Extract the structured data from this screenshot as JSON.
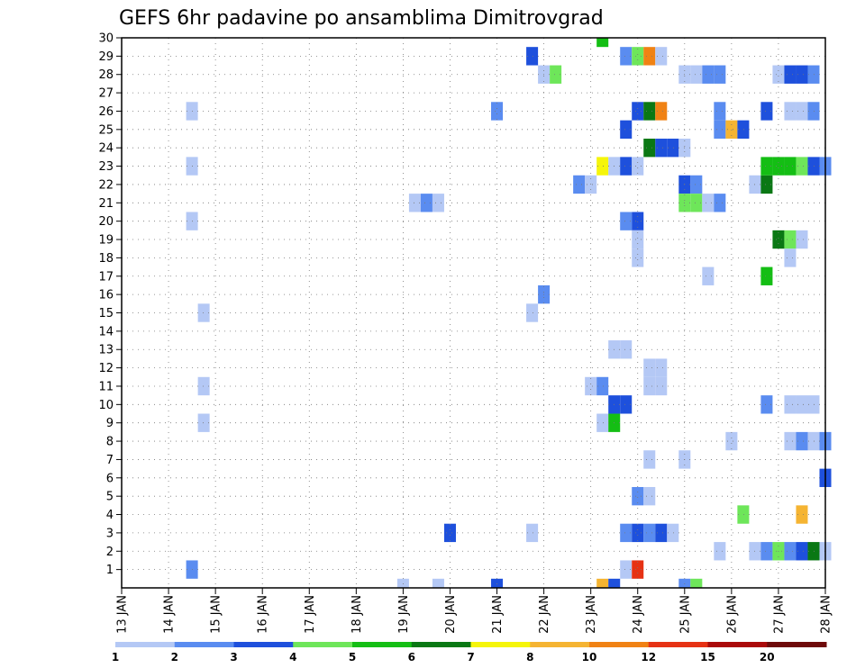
{
  "chart_data": {
    "type": "heatmap",
    "title": "GEFS 6hr padavine po ansamblima Dimitrovgrad",
    "x_tick_labels": [
      "13 JAN",
      "14 JAN",
      "15 JAN",
      "16 JAN",
      "17 JAN",
      "18 JAN",
      "19 JAN",
      "20 JAN",
      "21 JAN",
      "22 JAN",
      "23 JAN",
      "24 JAN",
      "25 JAN",
      "26 JAN",
      "27 JAN",
      "28 JAN"
    ],
    "x_range_days": [
      13,
      28
    ],
    "y_tick_labels": [
      "1",
      "2",
      "3",
      "4",
      "5",
      "6",
      "7",
      "8",
      "9",
      "10",
      "11",
      "12",
      "13",
      "14",
      "15",
      "16",
      "17",
      "18",
      "19",
      "20",
      "21",
      "22",
      "23",
      "24",
      "25",
      "26",
      "27",
      "28",
      "29",
      "30"
    ],
    "y_range": [
      0,
      30
    ],
    "grid": true,
    "legend_placement": "bottom",
    "legend": {
      "colors": [
        "#b4c8f5",
        "#5a8cf0",
        "#1e50dc",
        "#6ee65a",
        "#14be14",
        "#0a7814",
        "#f5f50a",
        "#f5b432",
        "#f08214",
        "#e63214",
        "#aa0a0a",
        "#6e0a0a"
      ],
      "labels": [
        "1",
        "2",
        "3",
        "4",
        "5",
        "6",
        "7",
        "8",
        "10",
        "12",
        "15",
        "20"
      ]
    },
    "cells": [
      {
        "day": 14.5,
        "member": 26,
        "level": 0
      },
      {
        "day": 14.5,
        "member": 23,
        "level": 0
      },
      {
        "day": 14.5,
        "member": 20,
        "level": 0
      },
      {
        "day": 14.75,
        "member": 15,
        "level": 0
      },
      {
        "day": 14.75,
        "member": 11,
        "level": 0
      },
      {
        "day": 14.75,
        "member": 9,
        "level": 0
      },
      {
        "day": 14.5,
        "member": 1,
        "level": 1
      },
      {
        "day": 19.0,
        "member": 0,
        "level": 0
      },
      {
        "day": 19.25,
        "member": 21,
        "level": 0
      },
      {
        "day": 19.5,
        "member": 21,
        "level": 1
      },
      {
        "day": 19.75,
        "member": 21,
        "level": 0
      },
      {
        "day": 19.75,
        "member": 0,
        "level": 0
      },
      {
        "day": 20.0,
        "member": 3,
        "level": 2
      },
      {
        "day": 21.0,
        "member": 26,
        "level": 1
      },
      {
        "day": 21.0,
        "member": 0,
        "level": 2
      },
      {
        "day": 21.75,
        "member": 29,
        "level": 2
      },
      {
        "day": 21.75,
        "member": 15,
        "level": 0
      },
      {
        "day": 21.75,
        "member": 3,
        "level": 0
      },
      {
        "day": 22.0,
        "member": 28,
        "level": 0
      },
      {
        "day": 22.25,
        "member": 28,
        "level": 3
      },
      {
        "day": 22.0,
        "member": 16,
        "level": 1
      },
      {
        "day": 22.75,
        "member": 22,
        "level": 1
      },
      {
        "day": 23.0,
        "member": 22,
        "level": 0
      },
      {
        "day": 23.0,
        "member": 11,
        "level": 0
      },
      {
        "day": 23.25,
        "member": 11,
        "level": 1
      },
      {
        "day": 23.25,
        "member": 9,
        "level": 0
      },
      {
        "day": 23.5,
        "member": 9,
        "level": 4
      },
      {
        "day": 23.25,
        "member": 30,
        "level": 4
      },
      {
        "day": 23.25,
        "member": 23,
        "level": 6
      },
      {
        "day": 23.5,
        "member": 23,
        "level": 0
      },
      {
        "day": 23.75,
        "member": 23,
        "level": 2
      },
      {
        "day": 24.0,
        "member": 23,
        "level": 0
      },
      {
        "day": 23.5,
        "member": 13,
        "level": 0
      },
      {
        "day": 23.75,
        "member": 13,
        "level": 0
      },
      {
        "day": 23.5,
        "member": 10,
        "level": 2
      },
      {
        "day": 23.75,
        "member": 10,
        "level": 2
      },
      {
        "day": 23.25,
        "member": 0,
        "level": 7
      },
      {
        "day": 23.5,
        "member": 0,
        "level": 2
      },
      {
        "day": 23.75,
        "member": 29,
        "level": 1
      },
      {
        "day": 24.0,
        "member": 29,
        "level": 3
      },
      {
        "day": 24.25,
        "member": 29,
        "level": 8
      },
      {
        "day": 24.5,
        "member": 29,
        "level": 0
      },
      {
        "day": 24.0,
        "member": 26,
        "level": 2
      },
      {
        "day": 24.25,
        "member": 26,
        "level": 5
      },
      {
        "day": 24.5,
        "member": 26,
        "level": 8
      },
      {
        "day": 23.75,
        "member": 25,
        "level": 2
      },
      {
        "day": 24.25,
        "member": 24,
        "level": 5
      },
      {
        "day": 24.5,
        "member": 24,
        "level": 2
      },
      {
        "day": 24.75,
        "member": 24,
        "level": 2
      },
      {
        "day": 25.0,
        "member": 24,
        "level": 0
      },
      {
        "day": 23.75,
        "member": 20,
        "level": 1
      },
      {
        "day": 24.0,
        "member": 20,
        "level": 2
      },
      {
        "day": 24.0,
        "member": 19,
        "level": 0
      },
      {
        "day": 24.0,
        "member": 18,
        "level": 0
      },
      {
        "day": 24.25,
        "member": 12,
        "level": 0
      },
      {
        "day": 24.5,
        "member": 12,
        "level": 0
      },
      {
        "day": 24.25,
        "member": 11,
        "level": 0
      },
      {
        "day": 24.5,
        "member": 11,
        "level": 0
      },
      {
        "day": 24.25,
        "member": 7,
        "level": 0
      },
      {
        "day": 24.0,
        "member": 5,
        "level": 1
      },
      {
        "day": 24.25,
        "member": 5,
        "level": 0
      },
      {
        "day": 23.75,
        "member": 3,
        "level": 1
      },
      {
        "day": 24.0,
        "member": 3,
        "level": 2
      },
      {
        "day": 24.25,
        "member": 3,
        "level": 1
      },
      {
        "day": 24.5,
        "member": 3,
        "level": 2
      },
      {
        "day": 24.75,
        "member": 3,
        "level": 0
      },
      {
        "day": 23.75,
        "member": 1,
        "level": 0
      },
      {
        "day": 24.0,
        "member": 1,
        "level": 9
      },
      {
        "day": 25.0,
        "member": 28,
        "level": 0
      },
      {
        "day": 25.25,
        "member": 28,
        "level": 0
      },
      {
        "day": 25.5,
        "member": 28,
        "level": 1
      },
      {
        "day": 25.75,
        "member": 28,
        "level": 1
      },
      {
        "day": 25.75,
        "member": 26,
        "level": 1
      },
      {
        "day": 25.75,
        "member": 25,
        "level": 1
      },
      {
        "day": 26.0,
        "member": 25,
        "level": 7
      },
      {
        "day": 26.25,
        "member": 25,
        "level": 2
      },
      {
        "day": 25.0,
        "member": 22,
        "level": 2
      },
      {
        "day": 25.25,
        "member": 22,
        "level": 1
      },
      {
        "day": 25.0,
        "member": 21,
        "level": 3
      },
      {
        "day": 25.25,
        "member": 21,
        "level": 3
      },
      {
        "day": 25.5,
        "member": 21,
        "level": 0
      },
      {
        "day": 25.75,
        "member": 21,
        "level": 1
      },
      {
        "day": 25.5,
        "member": 17,
        "level": 0
      },
      {
        "day": 25.0,
        "member": 7,
        "level": 0
      },
      {
        "day": 25.75,
        "member": 2,
        "level": 0
      },
      {
        "day": 25.0,
        "member": 0,
        "level": 1
      },
      {
        "day": 25.25,
        "member": 0,
        "level": 3
      },
      {
        "day": 26.0,
        "member": 8,
        "level": 0
      },
      {
        "day": 26.25,
        "member": 4,
        "level": 3
      },
      {
        "day": 26.5,
        "member": 22,
        "level": 0
      },
      {
        "day": 26.75,
        "member": 22,
        "level": 5
      },
      {
        "day": 26.75,
        "member": 26,
        "level": 2
      },
      {
        "day": 26.75,
        "member": 23,
        "level": 4
      },
      {
        "day": 27.0,
        "member": 23,
        "level": 4
      },
      {
        "day": 27.25,
        "member": 23,
        "level": 4
      },
      {
        "day": 27.5,
        "member": 23,
        "level": 3
      },
      {
        "day": 27.75,
        "member": 23,
        "level": 2
      },
      {
        "day": 28.0,
        "member": 23,
        "level": 1
      },
      {
        "day": 26.75,
        "member": 17,
        "level": 4
      },
      {
        "day": 26.75,
        "member": 10,
        "level": 1
      },
      {
        "day": 26.5,
        "member": 2,
        "level": 0
      },
      {
        "day": 26.75,
        "member": 2,
        "level": 1
      },
      {
        "day": 27.0,
        "member": 2,
        "level": 3
      },
      {
        "day": 27.25,
        "member": 2,
        "level": 1
      },
      {
        "day": 27.5,
        "member": 2,
        "level": 2
      },
      {
        "day": 27.75,
        "member": 2,
        "level": 5
      },
      {
        "day": 28.0,
        "member": 2,
        "level": 0
      },
      {
        "day": 27.0,
        "member": 28,
        "level": 0
      },
      {
        "day": 27.25,
        "member": 28,
        "level": 2
      },
      {
        "day": 27.5,
        "member": 28,
        "level": 2
      },
      {
        "day": 27.75,
        "member": 28,
        "level": 1
      },
      {
        "day": 27.25,
        "member": 26,
        "level": 0
      },
      {
        "day": 27.5,
        "member": 26,
        "level": 0
      },
      {
        "day": 27.75,
        "member": 26,
        "level": 1
      },
      {
        "day": 27.0,
        "member": 19,
        "level": 5
      },
      {
        "day": 27.25,
        "member": 19,
        "level": 3
      },
      {
        "day": 27.5,
        "member": 19,
        "level": 0
      },
      {
        "day": 27.25,
        "member": 18,
        "level": 0
      },
      {
        "day": 27.25,
        "member": 10,
        "level": 0
      },
      {
        "day": 27.5,
        "member": 10,
        "level": 0
      },
      {
        "day": 27.75,
        "member": 10,
        "level": 0
      },
      {
        "day": 27.25,
        "member": 8,
        "level": 0
      },
      {
        "day": 27.5,
        "member": 8,
        "level": 1
      },
      {
        "day": 27.75,
        "member": 8,
        "level": 0
      },
      {
        "day": 28.0,
        "member": 8,
        "level": 1
      },
      {
        "day": 28.0,
        "member": 6,
        "level": 2
      },
      {
        "day": 27.5,
        "member": 4,
        "level": 7
      }
    ]
  }
}
